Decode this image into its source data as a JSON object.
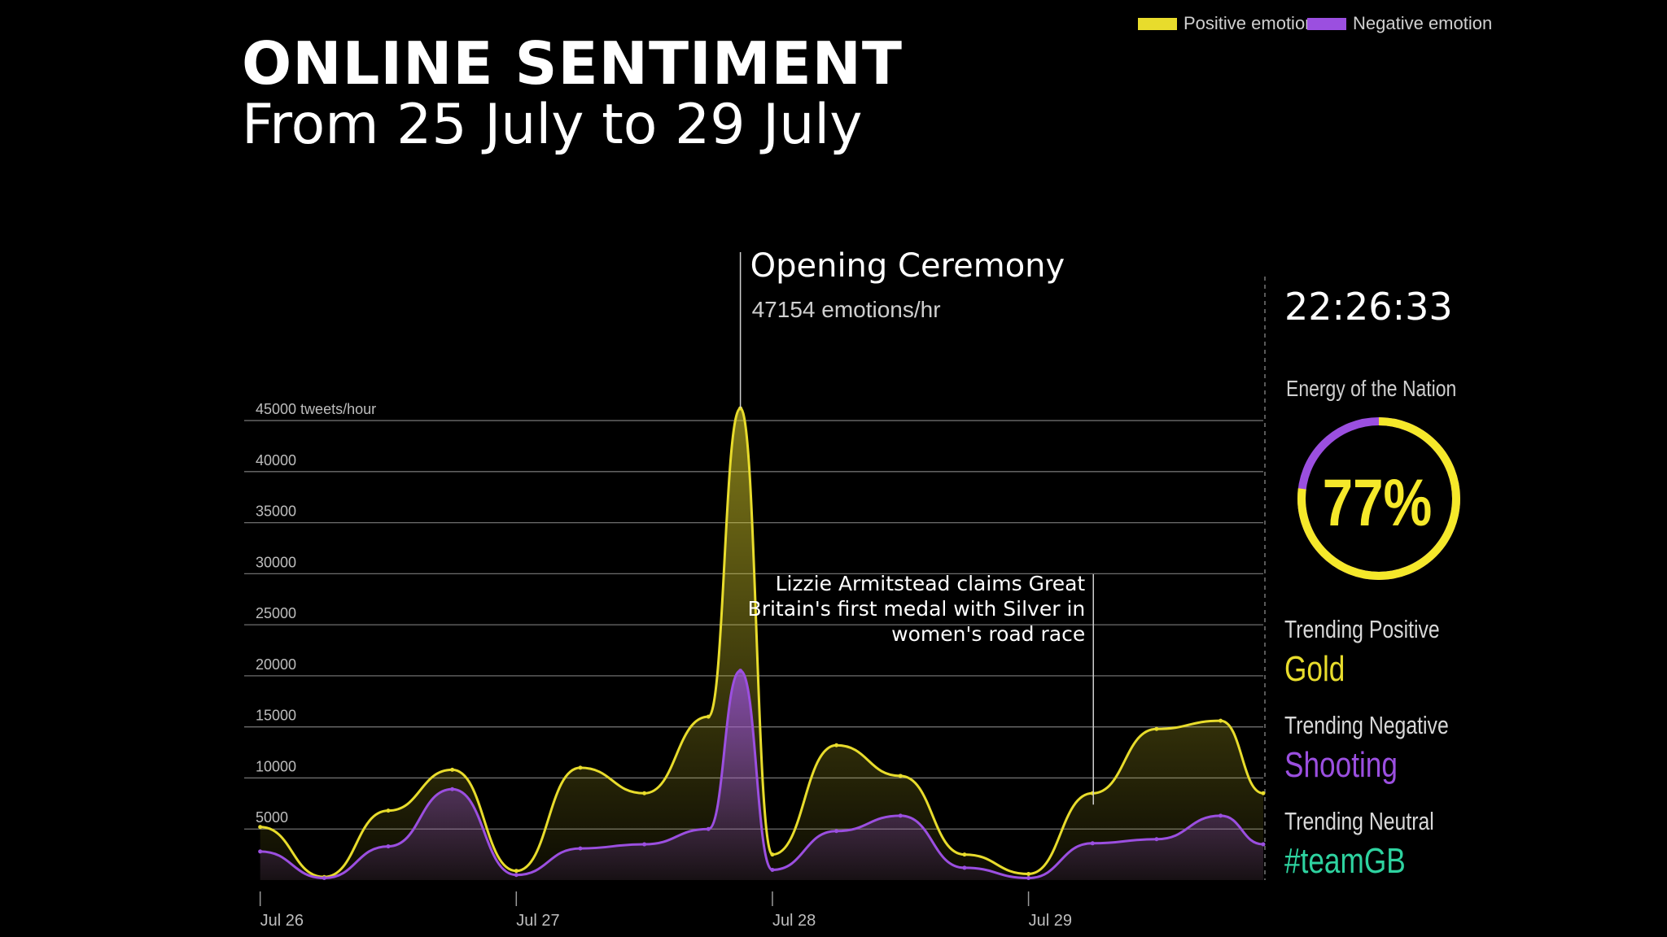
{
  "header": {
    "title": "ONLINE SENTIMENT",
    "subtitle": "From 25 July to 29 July"
  },
  "legend": {
    "positive_label": "Positive emotion",
    "negative_label": "Negative emotion",
    "positive_color": "#e8dc2c",
    "negative_color": "#9b4fe0"
  },
  "panel": {
    "clock": "22:26:33",
    "energy_label": "Energy of the Nation",
    "energy_value": "77%",
    "energy_fraction": 0.77,
    "trending_positive_label": "Trending Positive",
    "trending_positive_value": "Gold",
    "trending_negative_label": "Trending Negative",
    "trending_negative_value": "Shooting",
    "trending_neutral_label": "Trending Neutral",
    "trending_neutral_value": "#teamGB",
    "neutral_color": "#2ed3a0"
  },
  "chart_data": {
    "type": "area",
    "y_unit_label": "45000 tweets/hour",
    "ylim": [
      0,
      47154
    ],
    "y_ticks": [
      5000,
      10000,
      15000,
      20000,
      25000,
      30000,
      35000,
      40000,
      45000
    ],
    "y_tick_labels": [
      "5000",
      "10000",
      "15000",
      "20000",
      "25000",
      "30000",
      "35000",
      "40000",
      "45000 tweets/hour"
    ],
    "x_ticks": [
      "Jul 26",
      "Jul 27",
      "Jul 28",
      "Jul 29"
    ],
    "grid": true,
    "legend_position": "top-right",
    "annotations": [
      {
        "title": "Opening Ceremony",
        "detail": "47154 emotions/hr"
      },
      {
        "text": "Lizzie Armitstead claims Great Britain's first medal with Silver in women's road race"
      }
    ],
    "x": [
      "Jul 26 00:00",
      "Jul 26 06:00",
      "Jul 26 12:00",
      "Jul 26 18:00",
      "Jul 27 00:00",
      "Jul 27 06:00",
      "Jul 27 12:00",
      "Jul 27 18:00",
      "Jul 27 21:00",
      "Jul 28 00:00",
      "Jul 28 06:00",
      "Jul 28 12:00",
      "Jul 28 18:00",
      "Jul 29 00:00",
      "Jul 29 06:00",
      "Jul 29 12:00",
      "Jul 29 18:00",
      "Jul 29 22:00"
    ],
    "series": [
      {
        "name": "Positive emotion",
        "values": [
          5200,
          300,
          6800,
          10800,
          900,
          11000,
          8500,
          16000,
          46200,
          2500,
          13200,
          10200,
          2500,
          600,
          8500,
          14800,
          15600,
          8500
        ]
      },
      {
        "name": "Negative emotion",
        "values": [
          2800,
          200,
          3300,
          8900,
          500,
          3100,
          3500,
          5000,
          20500,
          1000,
          4800,
          6300,
          1200,
          200,
          3600,
          4000,
          6300,
          3500
        ]
      }
    ]
  }
}
